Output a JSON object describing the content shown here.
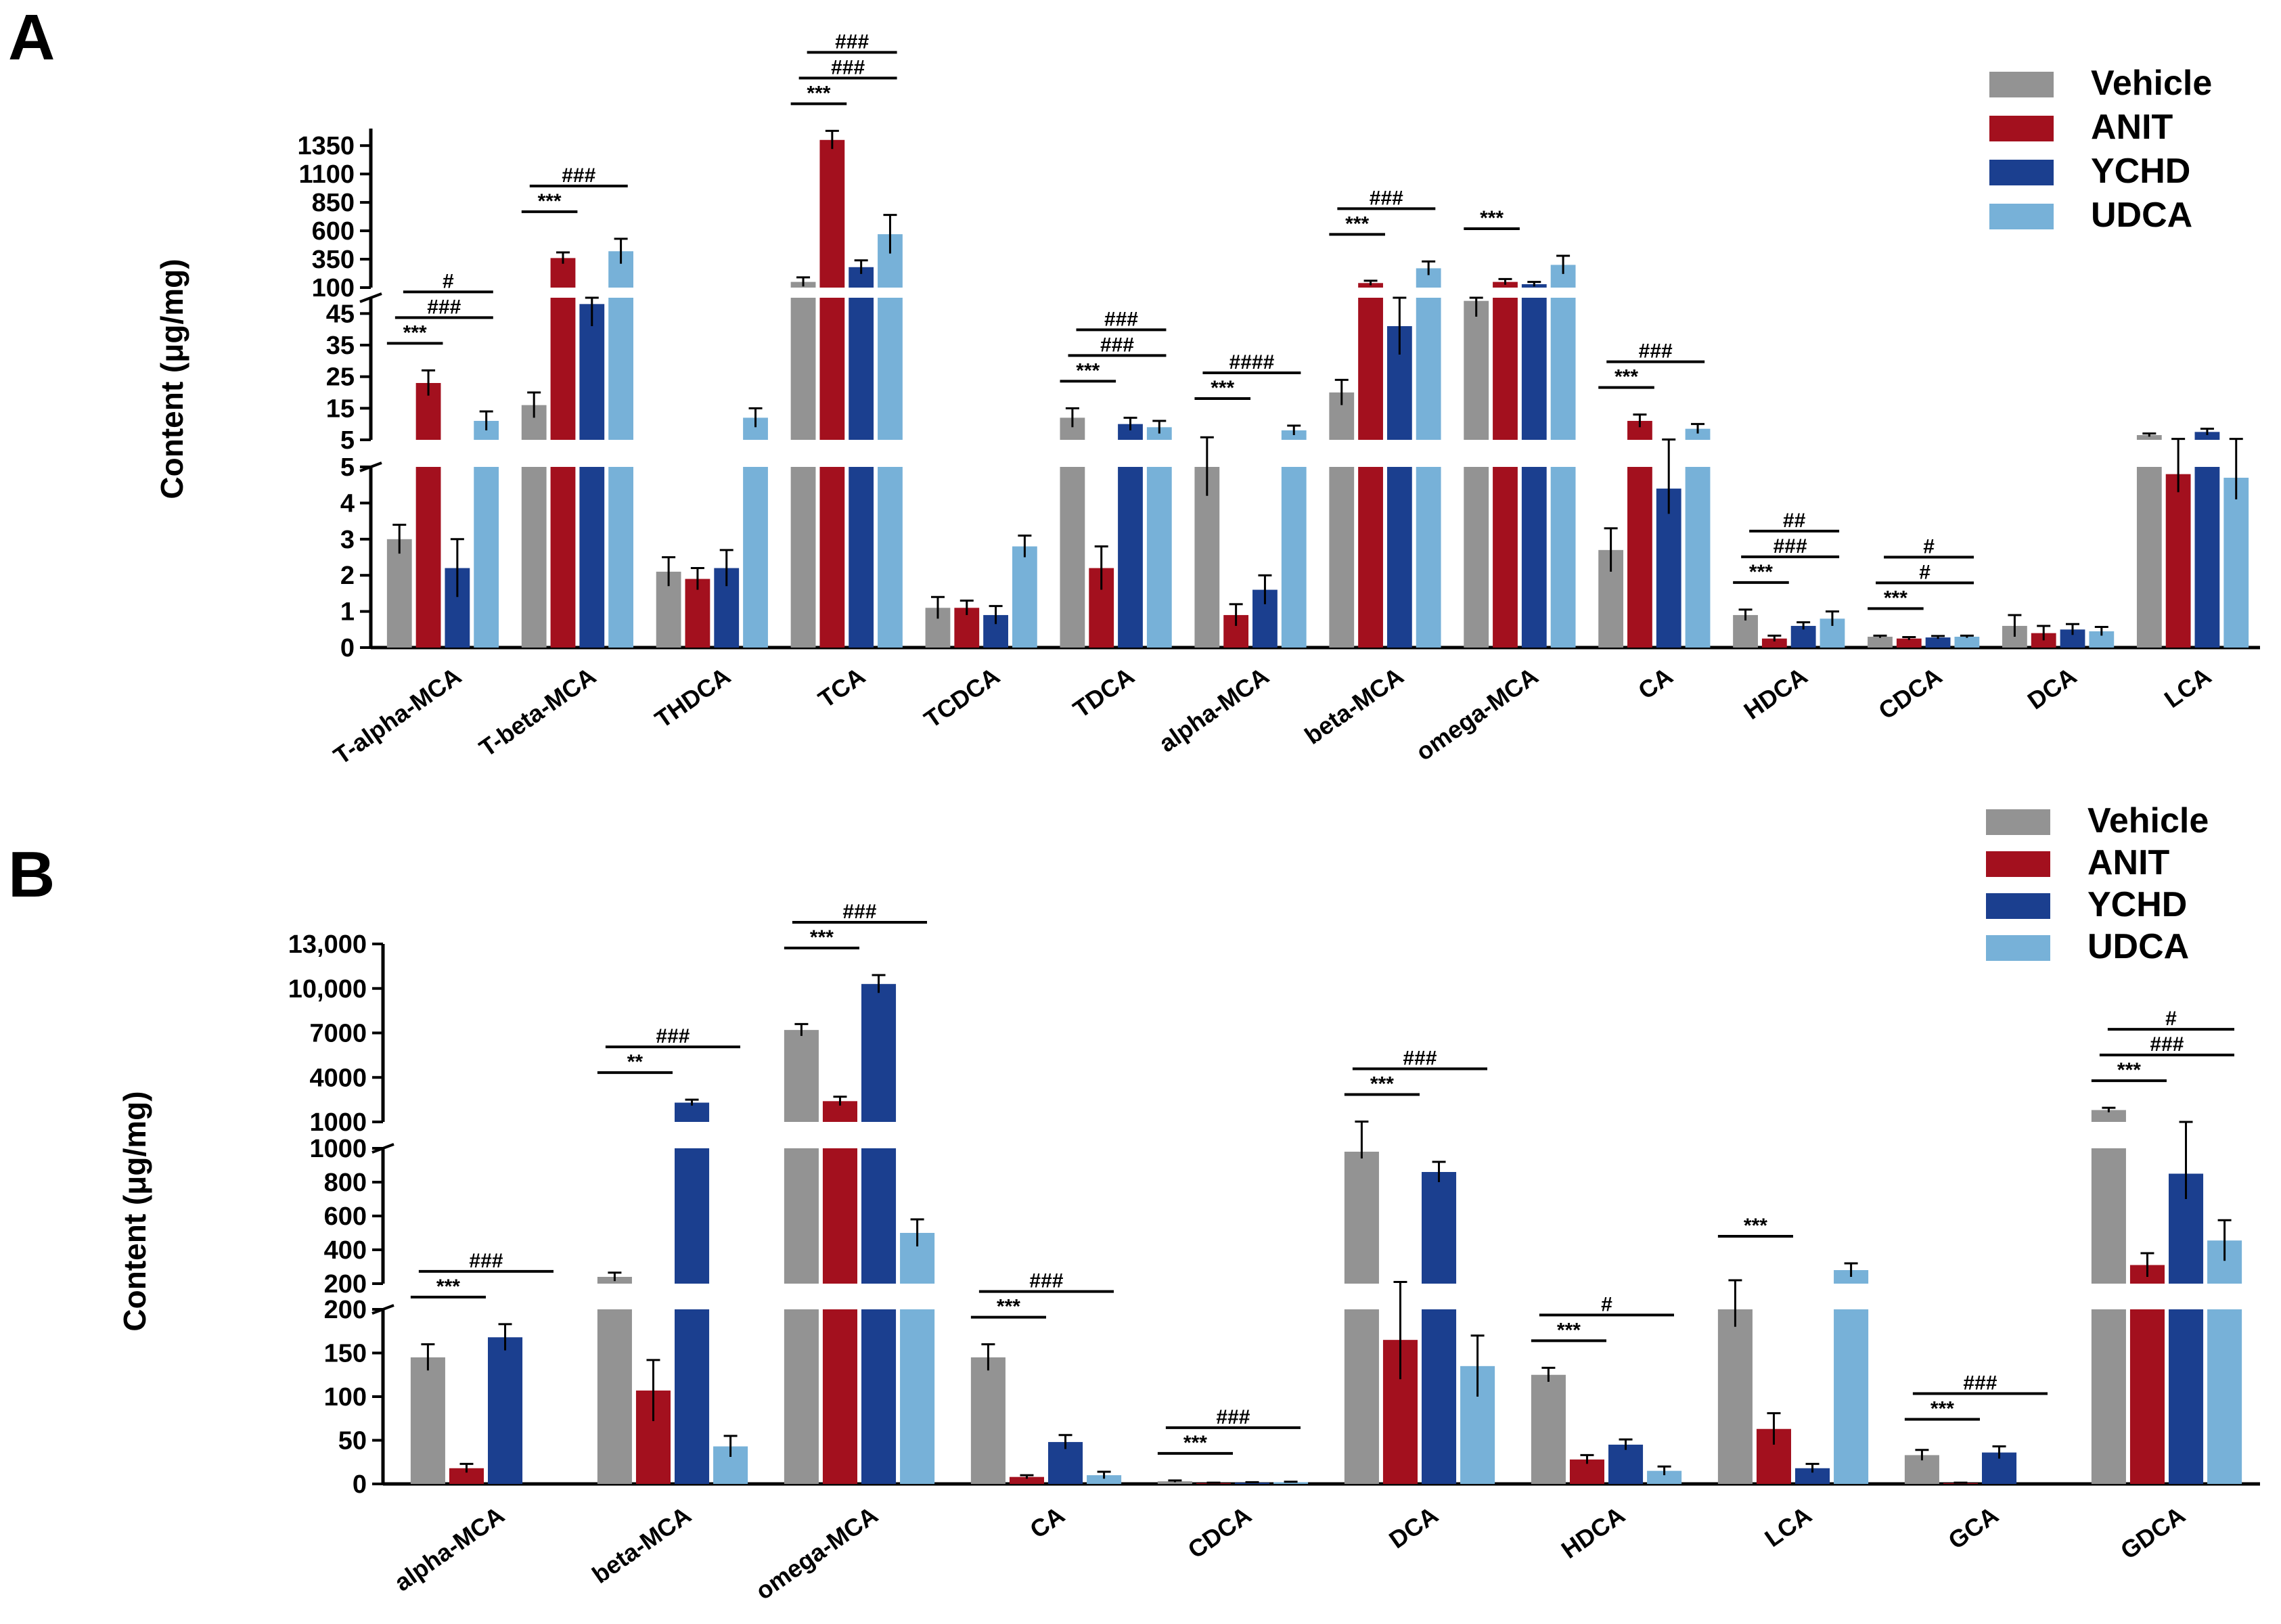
{
  "panels": [
    "A",
    "B"
  ],
  "legend": {
    "series": [
      "Vehicle",
      "ANIT",
      "YCHD",
      "UDCA"
    ],
    "colors": [
      "#939393",
      "#a3101e",
      "#1b3f8f",
      "#77b1d8"
    ]
  },
  "chart_data": [
    {
      "panel": "A",
      "type": "bar",
      "ylabel": "Content (μg/mg)",
      "xlabel": "",
      "y_axis_broken": true,
      "segments": [
        {
          "ylim": [
            0,
            5
          ],
          "ticks": [
            0,
            1,
            2,
            3,
            4,
            5
          ]
        },
        {
          "ylim": [
            5,
            50
          ],
          "ticks": [
            5,
            15,
            25,
            35,
            45
          ]
        },
        {
          "ylim": [
            100,
            1500
          ],
          "ticks": [
            100,
            350,
            600,
            850,
            1100,
            1350
          ]
        }
      ],
      "categories": [
        "T-alpha-MCA",
        "T-beta-MCA",
        "THDCA",
        "TCA",
        "TCDCA",
        "TDCA",
        "alpha-MCA",
        "beta-MCA",
        "omega-MCA",
        "CA",
        "HDCA",
        "CDCA",
        "DCA",
        "LCA"
      ],
      "series": [
        {
          "name": "Vehicle",
          "values": [
            3.0,
            16,
            2.1,
            150,
            1.1,
            12,
            5,
            20,
            49,
            2.7,
            0.9,
            0.3,
            0.6,
            6.5
          ],
          "errors": [
            0.4,
            4,
            0.4,
            40,
            0.3,
            3,
            0.8,
            4,
            5,
            0.6,
            0.15,
            0.03,
            0.3,
            0.5
          ]
        },
        {
          "name": "ANIT",
          "values": [
            23,
            360,
            1.9,
            1400,
            1.1,
            2.2,
            0.9,
            140,
            150,
            11,
            0.25,
            0.25,
            0.4,
            4.8
          ],
          "errors": [
            4,
            50,
            0.3,
            80,
            0.2,
            0.6,
            0.3,
            20,
            25,
            2,
            0.08,
            0.04,
            0.2,
            0.5
          ]
        },
        {
          "name": "YCHD",
          "values": [
            2.2,
            48,
            2.2,
            280,
            0.9,
            10,
            1.6,
            41,
            130,
            4.4,
            0.6,
            0.28,
            0.5,
            7.5
          ],
          "errors": [
            0.8,
            7,
            0.5,
            60,
            0.25,
            2,
            0.4,
            9,
            20,
            0.7,
            0.1,
            0.04,
            0.15,
            1
          ]
        },
        {
          "name": "UDCA",
          "values": [
            11,
            420,
            12,
            570,
            2.8,
            9,
            8,
            270,
            300,
            8.5,
            0.8,
            0.3,
            0.45,
            4.7
          ],
          "errors": [
            3,
            110,
            3,
            170,
            0.3,
            2,
            1.5,
            60,
            80,
            1.5,
            0.2,
            0.03,
            0.12,
            0.6
          ]
        }
      ],
      "annotations": [
        {
          "category": "T-alpha-MCA",
          "label": "***"
        },
        {
          "category": "T-alpha-MCA",
          "label": "###"
        },
        {
          "category": "T-alpha-MCA",
          "label": "#"
        },
        {
          "category": "T-beta-MCA",
          "label": "***"
        },
        {
          "category": "T-beta-MCA",
          "label": "###"
        },
        {
          "category": "TCA",
          "label": "***"
        },
        {
          "category": "TCA",
          "label": "###"
        },
        {
          "category": "TCA",
          "label": "###"
        },
        {
          "category": "TDCA",
          "label": "***"
        },
        {
          "category": "TDCA",
          "label": "###"
        },
        {
          "category": "TDCA",
          "label": "###"
        },
        {
          "category": "alpha-MCA",
          "label": "***"
        },
        {
          "category": "alpha-MCA",
          "label": "####"
        },
        {
          "category": "beta-MCA",
          "label": "***"
        },
        {
          "category": "beta-MCA",
          "label": "###"
        },
        {
          "category": "omega-MCA",
          "label": "***"
        },
        {
          "category": "CA",
          "label": "***"
        },
        {
          "category": "CA",
          "label": "###"
        },
        {
          "category": "HDCA",
          "label": "***"
        },
        {
          "category": "HDCA",
          "label": "###"
        },
        {
          "category": "HDCA",
          "label": "##"
        },
        {
          "category": "CDCA",
          "label": "***"
        },
        {
          "category": "CDCA",
          "label": "#"
        },
        {
          "category": "CDCA",
          "label": "#"
        }
      ]
    },
    {
      "panel": "B",
      "type": "bar",
      "ylabel": "Content (μg/mg)",
      "xlabel": "",
      "y_axis_broken": true,
      "segments": [
        {
          "ylim": [
            0,
            200
          ],
          "ticks": [
            0,
            50,
            100,
            150,
            200
          ]
        },
        {
          "ylim": [
            200,
            1000
          ],
          "ticks": [
            200,
            400,
            600,
            800,
            1000
          ]
        },
        {
          "ylim": [
            1000,
            13000
          ],
          "ticks": [
            1000,
            4000,
            7000,
            10000,
            13000
          ],
          "tick_labels": [
            "1000",
            "4000",
            "7000",
            "10,000",
            "13,000"
          ]
        }
      ],
      "categories": [
        "alpha-MCA",
        "beta-MCA",
        "omega-MCA",
        "CA",
        "CDCA",
        "DCA",
        "HDCA",
        "LCA",
        "GCA",
        "GDCA"
      ],
      "series": [
        {
          "name": "Vehicle",
          "values": [
            145,
            240,
            7200,
            145,
            3,
            980,
            125,
            200,
            33,
            1800
          ],
          "errors": [
            15,
            25,
            400,
            15,
            1,
            40,
            8,
            20,
            6,
            150
          ]
        },
        {
          "name": "ANIT",
          "values": [
            18,
            107,
            2400,
            8,
            1,
            165,
            28,
            63,
            1,
            310
          ],
          "errors": [
            5,
            35,
            300,
            2,
            0.5,
            45,
            5,
            18,
            0.5,
            70
          ]
        },
        {
          "name": "YCHD",
          "values": [
            168,
            2300,
            10300,
            48,
            1.5,
            860,
            45,
            18,
            36,
            850
          ],
          "errors": [
            15,
            200,
            600,
            8,
            0.5,
            60,
            6,
            5,
            7,
            150
          ]
        },
        {
          "name": "UDCA",
          "values": [
            0,
            43,
            500,
            10,
            2,
            135,
            15,
            280,
            0,
            455
          ],
          "errors": [
            0,
            12,
            80,
            4,
            0.5,
            35,
            5,
            40,
            0,
            120
          ]
        }
      ],
      "annotations": [
        {
          "category": "alpha-MCA",
          "label": "***"
        },
        {
          "category": "alpha-MCA",
          "label": "###"
        },
        {
          "category": "beta-MCA",
          "label": "**"
        },
        {
          "category": "beta-MCA",
          "label": "###"
        },
        {
          "category": "omega-MCA",
          "label": "***"
        },
        {
          "category": "omega-MCA",
          "label": "###"
        },
        {
          "category": "CA",
          "label": "***"
        },
        {
          "category": "CA",
          "label": "###"
        },
        {
          "category": "CDCA",
          "label": "***"
        },
        {
          "category": "CDCA",
          "label": "###"
        },
        {
          "category": "DCA",
          "label": "***"
        },
        {
          "category": "DCA",
          "label": "###"
        },
        {
          "category": "HDCA",
          "label": "***"
        },
        {
          "category": "HDCA",
          "label": "#"
        },
        {
          "category": "LCA",
          "label": "***"
        },
        {
          "category": "GCA",
          "label": "***"
        },
        {
          "category": "GCA",
          "label": "###"
        },
        {
          "category": "GDCA",
          "label": "***"
        },
        {
          "category": "GDCA",
          "label": "###"
        },
        {
          "category": "GDCA",
          "label": "#"
        }
      ]
    }
  ]
}
